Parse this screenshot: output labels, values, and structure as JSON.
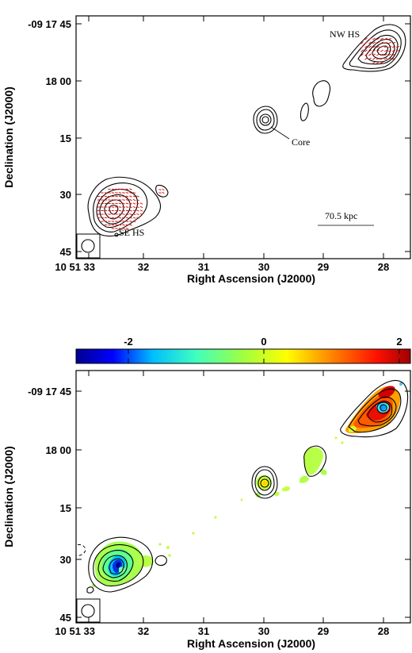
{
  "chart_data": [
    {
      "type": "contour",
      "xlabel": "Right Ascension (J2000)",
      "ylabel": "Declination (J2000)",
      "x_ticks": [
        "10 51 33",
        "32",
        "31",
        "30",
        "29",
        "28"
      ],
      "y_ticks": [
        "-09 17 45",
        "18 00",
        "15",
        "30",
        "45"
      ],
      "annotations": [
        "NW HS",
        "Core",
        "SE HS",
        "70.5 kpc"
      ],
      "contour_color": "#000000",
      "vector_color": "#dd1111"
    },
    {
      "type": "heatmap",
      "xlabel": "Right Ascension (J2000)",
      "ylabel": "Declination (J2000)",
      "x_ticks": [
        "10 51 33",
        "32",
        "31",
        "30",
        "29",
        "28"
      ],
      "y_ticks": [
        "-09 17 45",
        "18 00",
        "15",
        "30",
        "45"
      ],
      "colorbar_ticks": [
        "-2",
        "0",
        "2"
      ],
      "colormap": "jet",
      "contour_color": "#000000"
    }
  ]
}
